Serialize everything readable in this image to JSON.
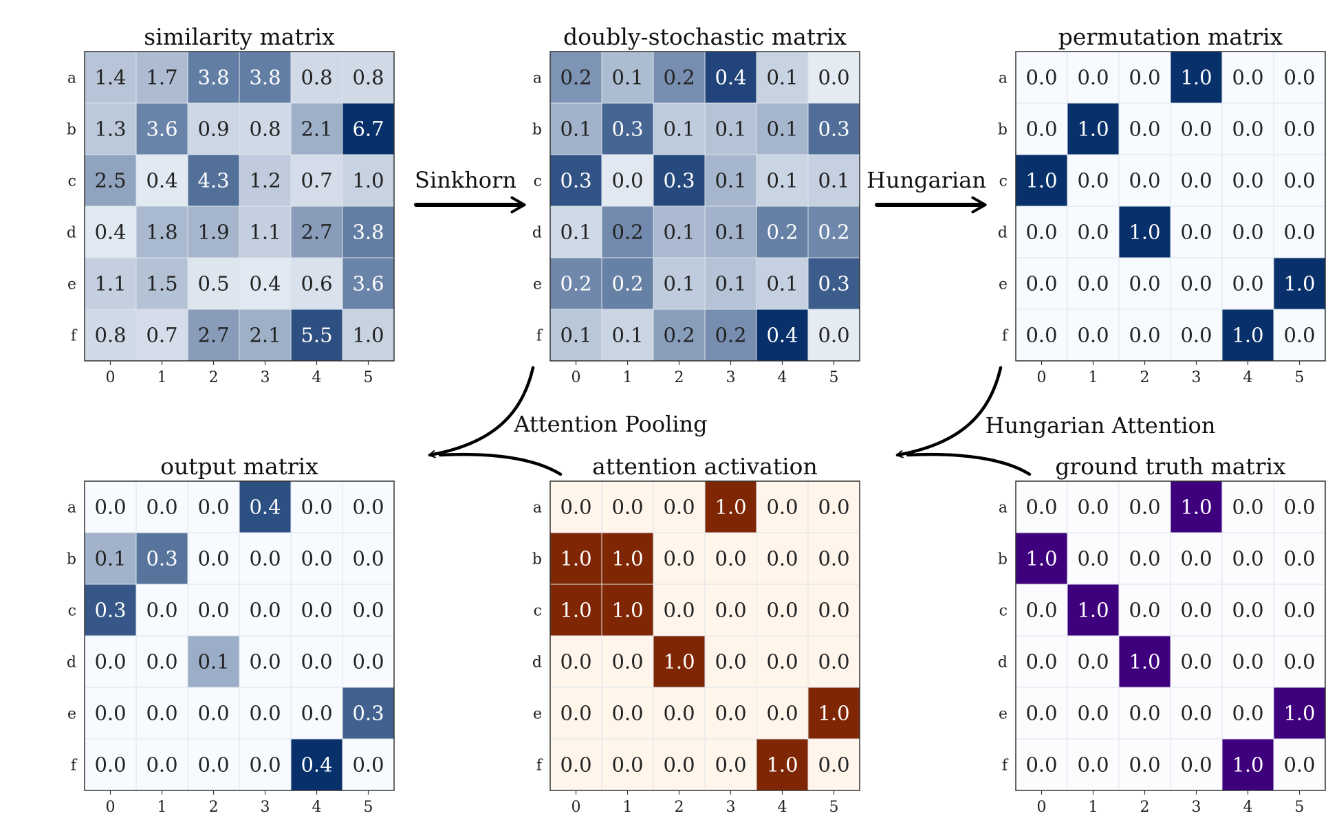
{
  "row_labels": [
    "a",
    "b",
    "c",
    "d",
    "e",
    "f"
  ],
  "col_labels": [
    "0",
    "1",
    "2",
    "3",
    "4",
    "5"
  ],
  "colors": {
    "blues_low": "#f7fbff",
    "blues_high": "#08306b",
    "oranges_low": "#fff5eb",
    "oranges_high": "#7f2704",
    "purples_low": "#fcfbfd",
    "purples_high": "#3f007d",
    "arrow": "#000000"
  },
  "steps": [
    {
      "id": "sinkhorn",
      "label": "Sinkhorn"
    },
    {
      "id": "hungarian",
      "label": "Hungarian"
    },
    {
      "id": "attention-pooling",
      "label": "Attention Pooling"
    },
    {
      "id": "hungarian-attention",
      "label": "Hungarian Attention"
    }
  ],
  "matrices": [
    {
      "id": "similarity-matrix",
      "title": "similarity matrix",
      "colormap": "blues",
      "vmax": 6.7,
      "values": [
        [
          1.4,
          1.7,
          3.8,
          3.8,
          0.8,
          0.8
        ],
        [
          1.3,
          3.6,
          0.9,
          0.8,
          2.1,
          6.7
        ],
        [
          2.5,
          0.4,
          4.3,
          1.2,
          0.7,
          1.0
        ],
        [
          0.4,
          1.8,
          1.9,
          1.1,
          2.7,
          3.8
        ],
        [
          1.1,
          1.5,
          0.5,
          0.4,
          0.6,
          3.6
        ],
        [
          0.8,
          0.7,
          2.7,
          2.1,
          5.5,
          1.0
        ]
      ]
    },
    {
      "id": "doubly-stochastic-matrix",
      "title": "doubly-stochastic matrix",
      "colormap": "blues",
      "vmax": 0.4,
      "values": [
        [
          0.2,
          0.1,
          0.2,
          0.4,
          0.1,
          0.0
        ],
        [
          0.1,
          0.3,
          0.1,
          0.1,
          0.1,
          0.3
        ],
        [
          0.3,
          0.0,
          0.3,
          0.1,
          0.1,
          0.1
        ],
        [
          0.1,
          0.2,
          0.1,
          0.1,
          0.2,
          0.2
        ],
        [
          0.2,
          0.2,
          0.1,
          0.1,
          0.1,
          0.3
        ],
        [
          0.1,
          0.1,
          0.2,
          0.2,
          0.4,
          0.0
        ]
      ],
      "intensities": [
        [
          0.45,
          0.25,
          0.48,
          0.88,
          0.15,
          0.05
        ],
        [
          0.3,
          0.7,
          0.18,
          0.22,
          0.28,
          0.65
        ],
        [
          0.8,
          0.06,
          0.85,
          0.28,
          0.14,
          0.16
        ],
        [
          0.12,
          0.5,
          0.26,
          0.3,
          0.55,
          0.52
        ],
        [
          0.52,
          0.55,
          0.18,
          0.22,
          0.16,
          0.75
        ],
        [
          0.2,
          0.14,
          0.4,
          0.48,
          1.0,
          0.05
        ]
      ]
    },
    {
      "id": "permutation-matrix",
      "title": "permutation matrix",
      "colormap": "blues",
      "vmax": 1.0,
      "values": [
        [
          0.0,
          0.0,
          0.0,
          1.0,
          0.0,
          0.0
        ],
        [
          0.0,
          1.0,
          0.0,
          0.0,
          0.0,
          0.0
        ],
        [
          1.0,
          0.0,
          0.0,
          0.0,
          0.0,
          0.0
        ],
        [
          0.0,
          0.0,
          1.0,
          0.0,
          0.0,
          0.0
        ],
        [
          0.0,
          0.0,
          0.0,
          0.0,
          0.0,
          1.0
        ],
        [
          0.0,
          0.0,
          0.0,
          0.0,
          1.0,
          0.0
        ]
      ]
    },
    {
      "id": "output-matrix",
      "title": "output matrix",
      "colormap": "blues",
      "vmax": 0.4,
      "values": [
        [
          0.0,
          0.0,
          0.0,
          0.4,
          0.0,
          0.0
        ],
        [
          0.1,
          0.3,
          0.0,
          0.0,
          0.0,
          0.0
        ],
        [
          0.3,
          0.0,
          0.0,
          0.0,
          0.0,
          0.0
        ],
        [
          0.0,
          0.0,
          0.1,
          0.0,
          0.0,
          0.0
        ],
        [
          0.0,
          0.0,
          0.0,
          0.0,
          0.0,
          0.3
        ],
        [
          0.0,
          0.0,
          0.0,
          0.0,
          0.4,
          0.0
        ]
      ],
      "intensities": [
        [
          0.0,
          0.0,
          0.0,
          0.82,
          0.0,
          0.0
        ],
        [
          0.3,
          0.62,
          0.0,
          0.0,
          0.0,
          0.0
        ],
        [
          0.78,
          0.0,
          0.0,
          0.0,
          0.0,
          0.0
        ],
        [
          0.0,
          0.0,
          0.32,
          0.0,
          0.0,
          0.0
        ],
        [
          0.0,
          0.0,
          0.0,
          0.0,
          0.0,
          0.72
        ],
        [
          0.0,
          0.0,
          0.0,
          0.0,
          1.0,
          0.0
        ]
      ]
    },
    {
      "id": "attention-activation",
      "title": "attention activation",
      "colormap": "oranges",
      "vmax": 1.0,
      "values": [
        [
          0.0,
          0.0,
          0.0,
          1.0,
          0.0,
          0.0
        ],
        [
          1.0,
          1.0,
          0.0,
          0.0,
          0.0,
          0.0
        ],
        [
          1.0,
          1.0,
          0.0,
          0.0,
          0.0,
          0.0
        ],
        [
          0.0,
          0.0,
          1.0,
          0.0,
          0.0,
          0.0
        ],
        [
          0.0,
          0.0,
          0.0,
          0.0,
          0.0,
          1.0
        ],
        [
          0.0,
          0.0,
          0.0,
          0.0,
          1.0,
          0.0
        ]
      ]
    },
    {
      "id": "ground-truth-matrix",
      "title": "ground truth matrix",
      "colormap": "purples",
      "vmax": 1.0,
      "values": [
        [
          0.0,
          0.0,
          0.0,
          1.0,
          0.0,
          0.0
        ],
        [
          1.0,
          0.0,
          0.0,
          0.0,
          0.0,
          0.0
        ],
        [
          0.0,
          1.0,
          0.0,
          0.0,
          0.0,
          0.0
        ],
        [
          0.0,
          0.0,
          1.0,
          0.0,
          0.0,
          0.0
        ],
        [
          0.0,
          0.0,
          0.0,
          0.0,
          0.0,
          1.0
        ],
        [
          0.0,
          0.0,
          0.0,
          0.0,
          1.0,
          0.0
        ]
      ]
    }
  ]
}
